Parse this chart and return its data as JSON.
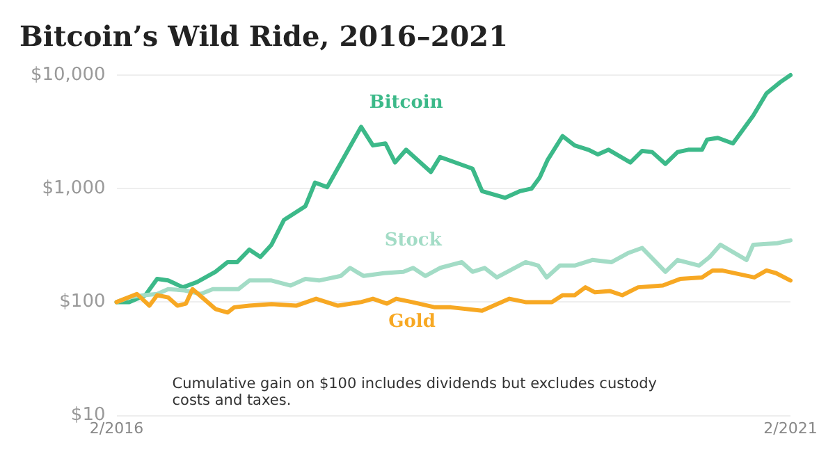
{
  "chart_data": {
    "type": "line",
    "title": "Bitcoin’s Wild Ride, 2016–2021",
    "log": "y",
    "ylim": [
      10,
      10000
    ],
    "yticks": [
      {
        "value": 10,
        "label": "$10"
      },
      {
        "value": 100,
        "label": "$100"
      },
      {
        "value": 1000,
        "label": "$1,000"
      },
      {
        "value": 10000,
        "label": "$10,000"
      }
    ],
    "xlim": [
      "2016-02-01",
      "2021-02-01"
    ],
    "xticks": [
      {
        "value": "2016-02",
        "label": "2/2016"
      },
      {
        "value": "2021-02",
        "label": "2/2021"
      }
    ],
    "grid": "y",
    "legend": false,
    "marker": "none",
    "line_style": "solid",
    "annotations": [
      "Cumulative gain on $100 includes dividends but excludes custody costs and taxes."
    ],
    "series": [
      {
        "name": "Gold",
        "color": "#f7a823",
        "x": [
          "2016-02-01",
          "2016-03-27",
          "2016-04-30",
          "2016-05-21",
          "2016-06-20",
          "2016-07-15",
          "2016-08-07",
          "2016-08-25",
          "2016-09-20",
          "2016-10-26",
          "2016-11-28",
          "2016-12-16",
          "2017-01-26",
          "2017-03-27",
          "2017-06-02",
          "2017-07-26",
          "2017-09-23",
          "2017-11-25",
          "2017-12-27",
          "2018-02-03",
          "2018-02-28",
          "2018-04-12",
          "2018-06-13",
          "2018-07-26",
          "2018-10-19",
          "2019-01-01",
          "2019-02-14",
          "2019-04-26",
          "2019-05-25",
          "2019-06-27",
          "2019-07-26",
          "2019-08-21",
          "2019-10-01",
          "2019-11-03",
          "2019-12-16",
          "2020-02-21",
          "2020-04-08",
          "2020-06-06",
          "2020-07-05",
          "2020-07-30",
          "2020-10-26",
          "2020-11-28",
          "2020-12-24",
          "2021-02-01"
        ],
        "values": [
          100,
          118,
          93,
          115,
          110,
          93,
          97,
          130,
          110,
          87,
          81,
          90,
          93,
          96,
          93,
          107,
          93,
          100,
          107,
          97,
          107,
          100,
          90,
          90,
          84,
          107,
          100,
          100,
          115,
          115,
          135,
          122,
          125,
          115,
          135,
          140,
          160,
          165,
          190,
          190,
          165,
          190,
          180,
          155
        ]
      },
      {
        "name": "Stock",
        "color": "#a3dcc6",
        "x": [
          "2016-02-01",
          "2016-03-06",
          "2016-04-15",
          "2016-05-21",
          "2016-06-20",
          "2016-08-03",
          "2016-09-16",
          "2016-10-19",
          "2016-12-27",
          "2017-01-26",
          "2017-03-27",
          "2017-05-18",
          "2017-06-27",
          "2017-08-03",
          "2017-10-01",
          "2017-10-26",
          "2017-12-02",
          "2018-01-26",
          "2018-03-20",
          "2018-04-15",
          "2018-05-18",
          "2018-06-27",
          "2018-08-25",
          "2018-09-23",
          "2018-10-26",
          "2018-11-28",
          "2019-02-14",
          "2019-03-20",
          "2019-04-12",
          "2019-05-18",
          "2019-06-27",
          "2019-08-14",
          "2019-10-05",
          "2019-11-18",
          "2019-12-27",
          "2020-02-28",
          "2020-04-01",
          "2020-05-29",
          "2020-06-27",
          "2020-07-26",
          "2020-10-05",
          "2020-10-23",
          "2020-12-27",
          "2021-02-01"
        ],
        "values": [
          100,
          110,
          115,
          118,
          130,
          127,
          118,
          130,
          130,
          155,
          155,
          140,
          160,
          155,
          170,
          200,
          170,
          180,
          185,
          200,
          170,
          200,
          225,
          185,
          200,
          165,
          225,
          210,
          165,
          210,
          210,
          235,
          225,
          270,
          300,
          185,
          235,
          210,
          250,
          320,
          235,
          320,
          330,
          350
        ]
      },
      {
        "name": "Bitcoin",
        "color": "#3cb989",
        "x": [
          "2016-02-01",
          "2016-03-06",
          "2016-04-19",
          "2016-05-21",
          "2016-06-20",
          "2016-07-30",
          "2016-09-06",
          "2016-10-26",
          "2016-11-28",
          "2016-12-24",
          "2017-01-26",
          "2017-02-25",
          "2017-03-27",
          "2017-04-30",
          "2017-06-27",
          "2017-07-23",
          "2017-08-25",
          "2017-11-25",
          "2017-12-27",
          "2018-01-30",
          "2018-02-25",
          "2018-03-27",
          "2018-06-02",
          "2018-06-27",
          "2018-09-23",
          "2018-10-19",
          "2018-12-20",
          "2019-01-30",
          "2019-03-02",
          "2019-03-24",
          "2019-04-15",
          "2019-05-25",
          "2019-06-27",
          "2019-08-03",
          "2019-08-29",
          "2019-09-27",
          "2019-11-25",
          "2019-12-27",
          "2020-01-23",
          "2020-02-28",
          "2020-04-01",
          "2020-04-30",
          "2020-06-06",
          "2020-06-20",
          "2020-07-19",
          "2020-08-29",
          "2020-10-23",
          "2020-11-28",
          "2021-01-05",
          "2021-02-01"
        ],
        "values": [
          100,
          100,
          115,
          160,
          155,
          135,
          150,
          185,
          225,
          225,
          290,
          250,
          320,
          530,
          700,
          1130,
          1030,
          3500,
          2400,
          2500,
          1700,
          2200,
          1400,
          1900,
          1500,
          950,
          830,
          950,
          1000,
          1250,
          1800,
          2900,
          2400,
          2200,
          2000,
          2200,
          1700,
          2150,
          2100,
          1650,
          2100,
          2200,
          2200,
          2700,
          2800,
          2500,
          4400,
          6900,
          8700,
          10000
        ]
      }
    ]
  }
}
